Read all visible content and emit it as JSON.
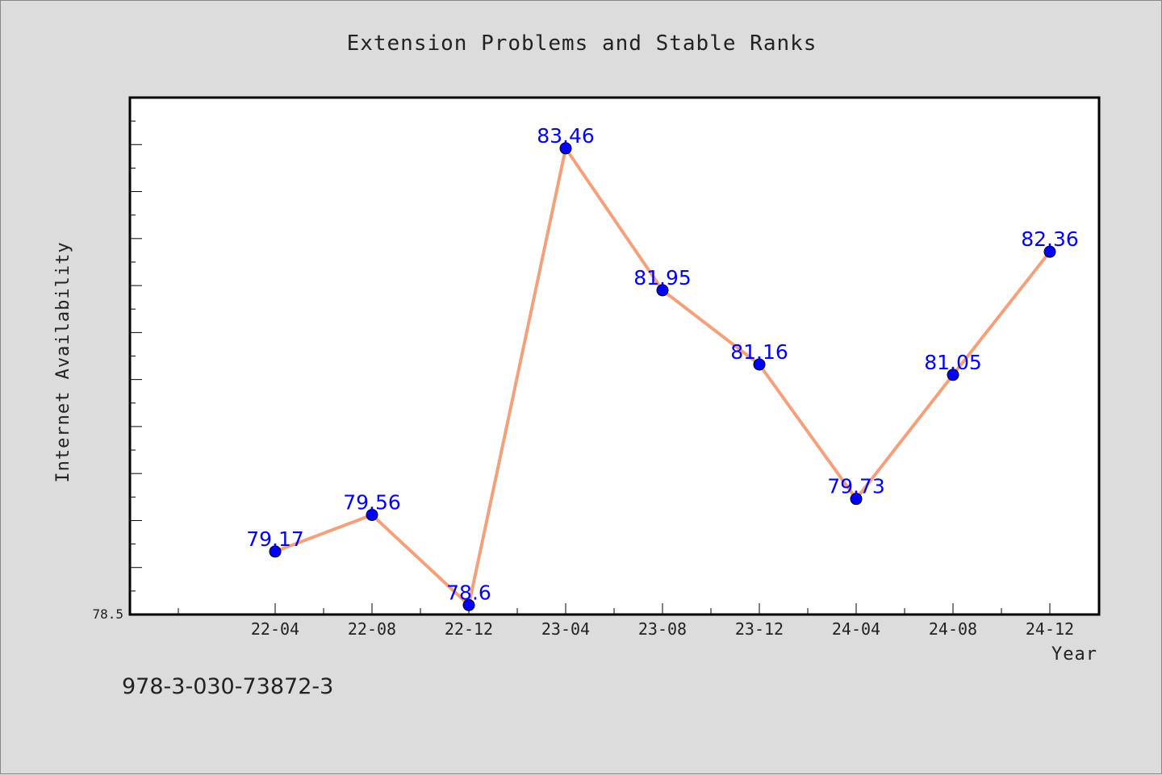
{
  "chart_data": {
    "type": "line",
    "title": "Extension Problems and Stable Ranks",
    "xlabel": "Year",
    "ylabel": "Internet Availability",
    "y_min_label": "78.5",
    "categories": [
      "22-04",
      "22-08",
      "22-12",
      "23-04",
      "23-08",
      "23-12",
      "24-04",
      "24-08",
      "24-12"
    ],
    "values": [
      79.17,
      79.56,
      78.6,
      83.46,
      81.95,
      81.16,
      79.73,
      81.05,
      82.36
    ],
    "data_labels": [
      "79.17",
      "79.56",
      "78.6",
      "83.46",
      "81.95",
      "81.16",
      "79.73",
      "81.05",
      "82.36"
    ],
    "ylim": [
      78.5,
      84.0
    ],
    "grid": false,
    "colors": {
      "line": "#f4a07a",
      "marker": "#0000ff",
      "label": "#0000ff",
      "plot_bg": "#ffffff",
      "page_bg": "#dcdcdc"
    }
  },
  "footer": {
    "code": "978-3-030-73872-3"
  }
}
